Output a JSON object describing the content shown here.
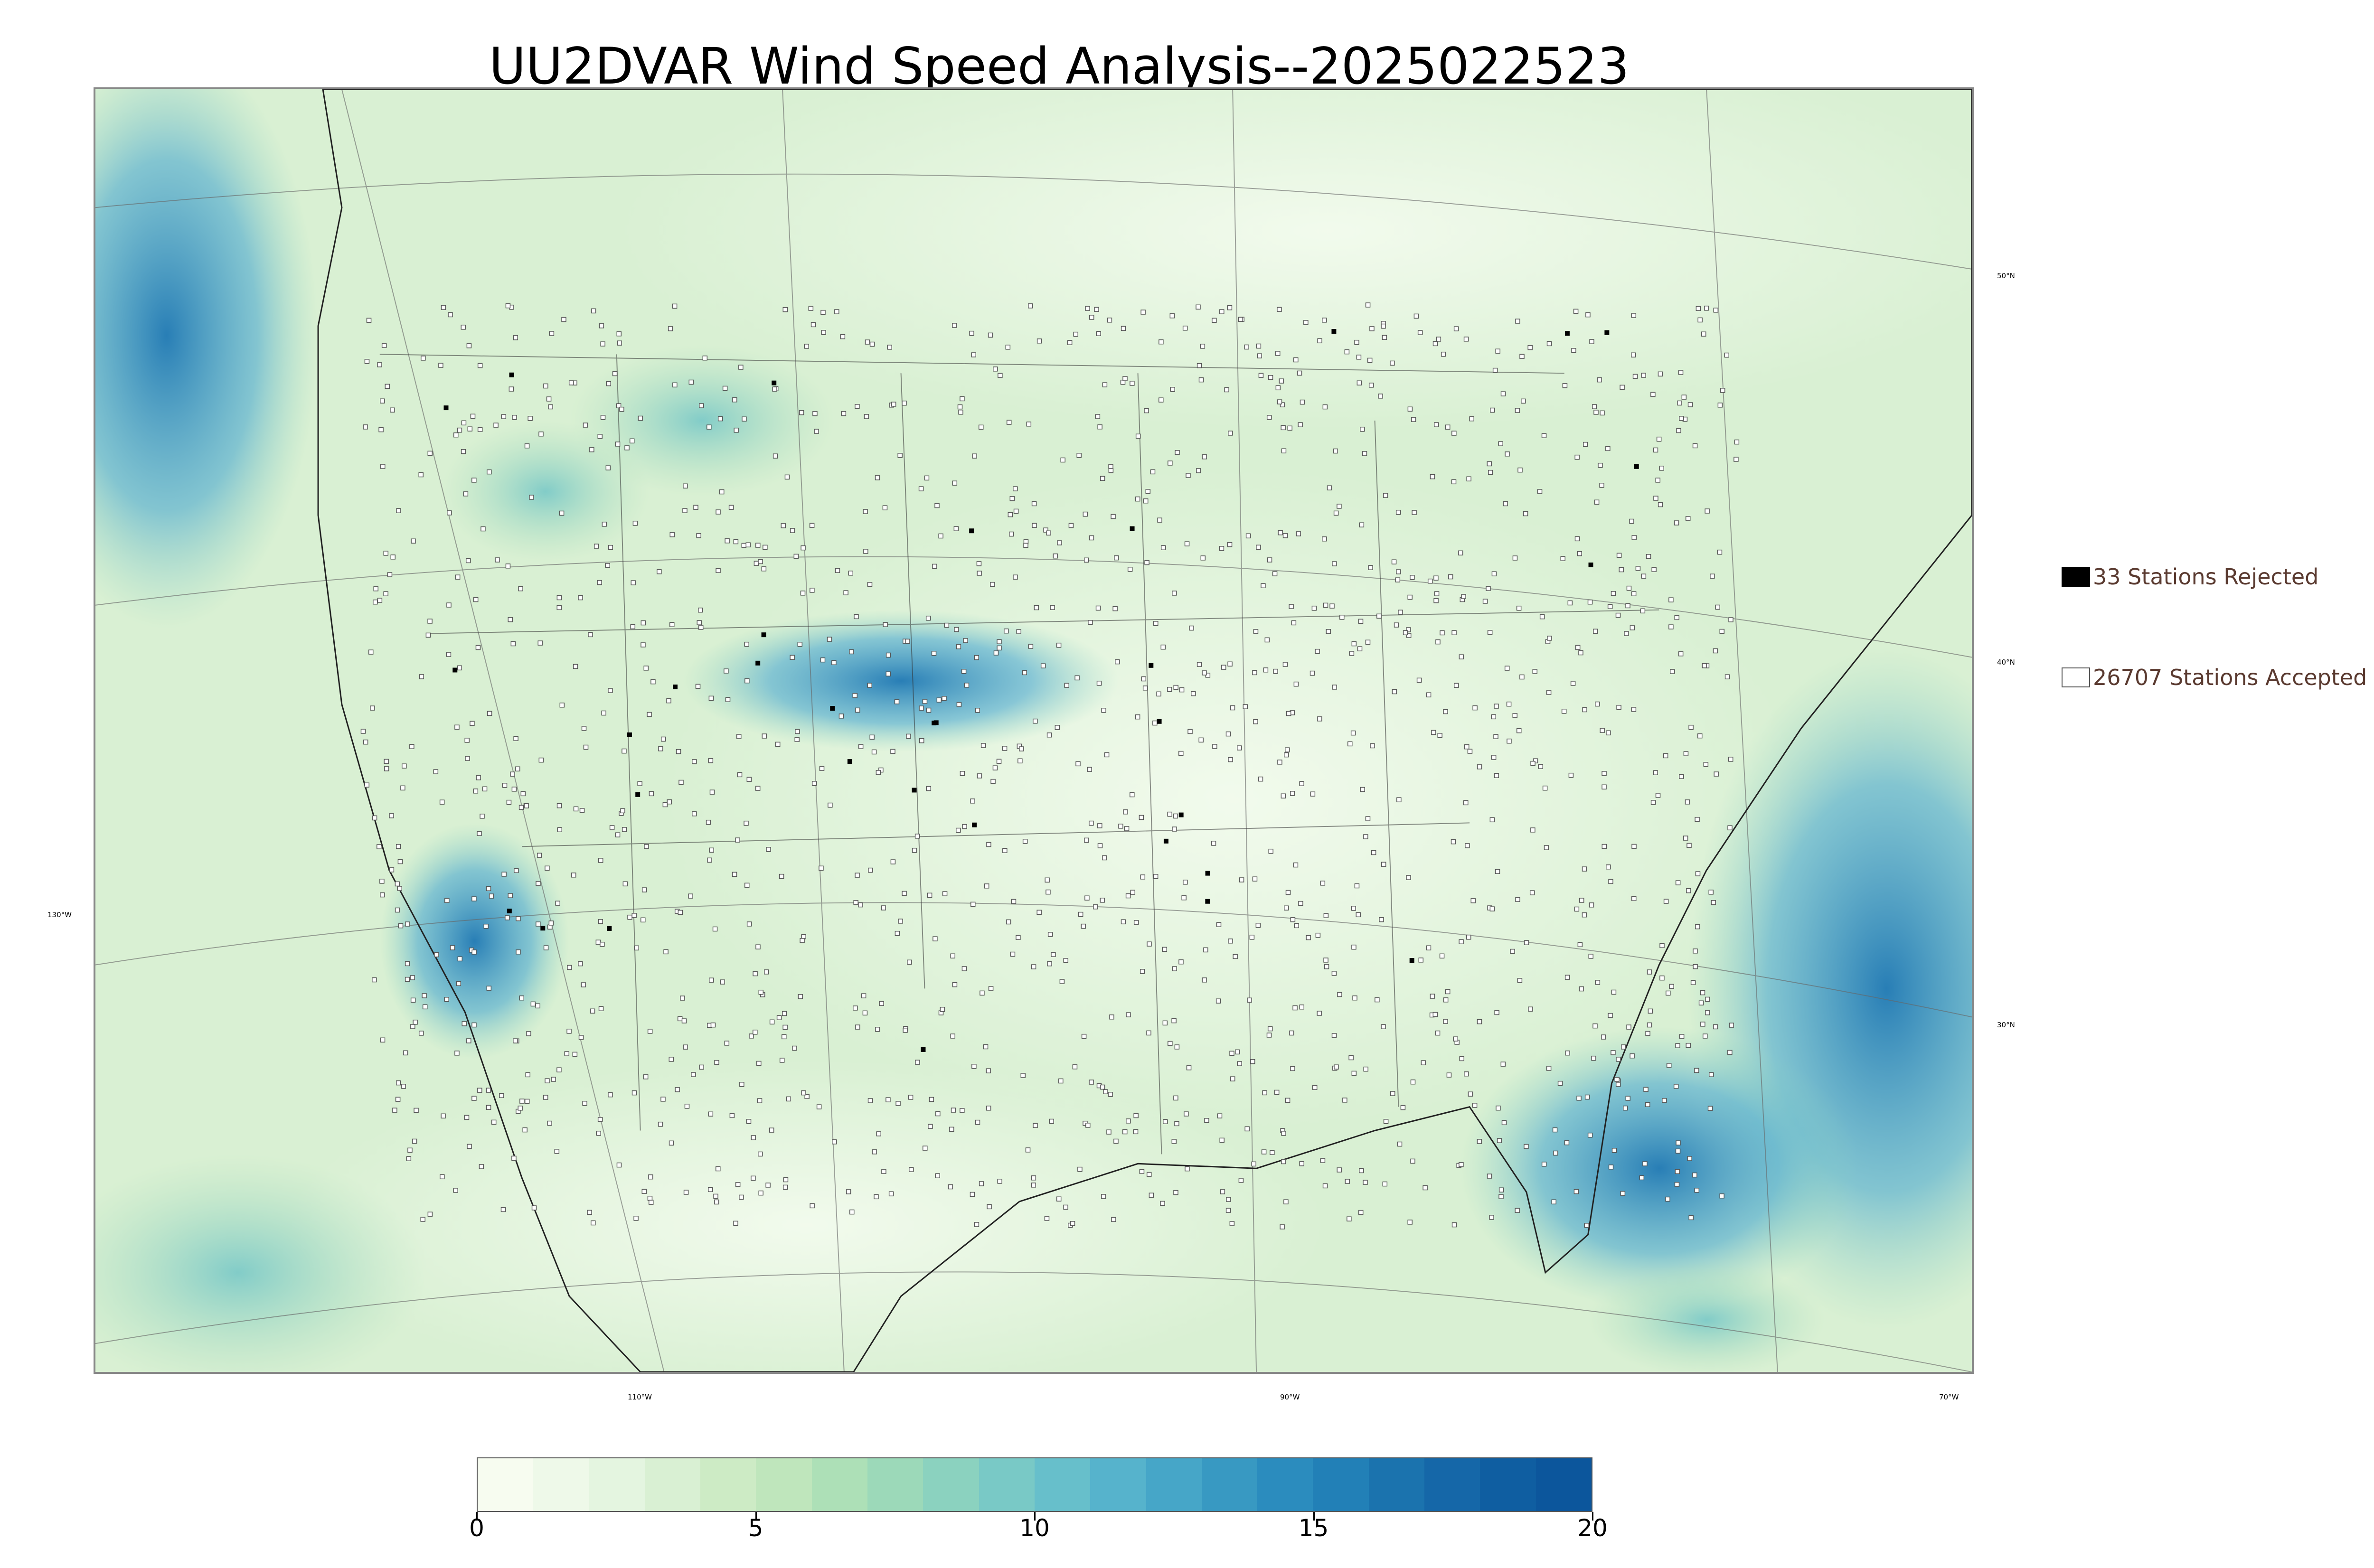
{
  "title": "UU2DVAR Wind Speed Analysis--2025022523",
  "legend": {
    "rejected": {
      "label": "33 Stations Rejected",
      "color": "#000000"
    },
    "accepted": {
      "label": "26707 Stations Accepted",
      "color": "#ffffff"
    }
  },
  "graticule": {
    "lon_labels": [
      "130°W",
      "110°W",
      "90°W",
      "70°W"
    ],
    "lat_labels": [
      "50°N",
      "40°N",
      "30°N"
    ]
  },
  "colorbar": {
    "min": 0,
    "max": 20,
    "tick_labels": [
      "0",
      "5",
      "10",
      "15",
      "20"
    ],
    "colors": [
      "#f7fcf0",
      "#eef9e9",
      "#e4f5e0",
      "#d9f0d3",
      "#cdebc5",
      "#bfe6bc",
      "#ade0b7",
      "#9cd9b9",
      "#8bd2bf",
      "#79c9c6",
      "#67bfcb",
      "#56b3cc",
      "#46a6c8",
      "#3899c2",
      "#2b8cbe",
      "#2280b7",
      "#1b73ae",
      "#1567a8",
      "#0f5ea1",
      "#0c569c"
    ]
  },
  "colors": {
    "land_base": "#d7efcd",
    "ocean_base": "#e6f5df",
    "high_wind": "#2b8cbe",
    "boundary": "#333333"
  }
}
